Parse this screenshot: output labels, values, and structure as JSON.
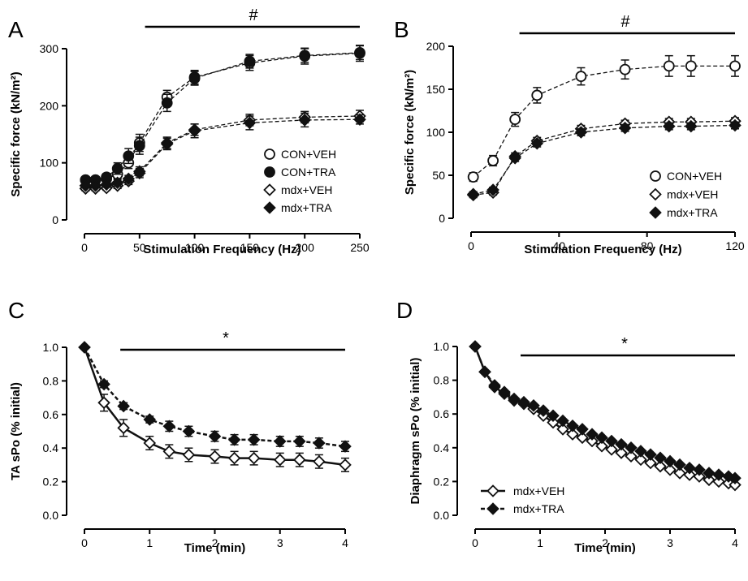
{
  "chart_data": [
    {
      "panel": "A",
      "type": "line",
      "significance_mark": "#",
      "significance_range": [
        55,
        250
      ],
      "xlabel": "Stimulation Frequency (Hz)",
      "ylabel": "Specific force (kN/m²)",
      "xlim": [
        0,
        250
      ],
      "ylim": [
        0,
        300
      ],
      "xticks": [
        0,
        50,
        100,
        150,
        200,
        250
      ],
      "yticks": [
        0,
        100,
        200,
        300
      ],
      "x": [
        1,
        10,
        20,
        30,
        40,
        50,
        75,
        100,
        150,
        200,
        250
      ],
      "legend_position": "lower-right",
      "series": [
        {
          "name": "CON+VEH",
          "marker": "circle-open",
          "values": [
            70,
            70,
            72,
            80,
            100,
            135,
            215,
            250,
            275,
            287,
            292
          ],
          "err": [
            5,
            5,
            6,
            8,
            10,
            15,
            12,
            12,
            13,
            14,
            14
          ]
        },
        {
          "name": "CON+TRA",
          "marker": "circle-filled",
          "values": [
            70,
            70,
            75,
            90,
            112,
            130,
            205,
            248,
            278,
            288,
            293
          ],
          "err": [
            5,
            5,
            6,
            10,
            13,
            15,
            15,
            12,
            12,
            12,
            12
          ]
        },
        {
          "name": "mdx+VEH",
          "marker": "diamond-open",
          "values": [
            55,
            55,
            56,
            60,
            68,
            85,
            135,
            158,
            175,
            180,
            182
          ],
          "err": [
            4,
            4,
            4,
            5,
            6,
            8,
            10,
            10,
            10,
            10,
            10
          ]
        },
        {
          "name": "mdx+TRA",
          "marker": "diamond-filled",
          "values": [
            60,
            60,
            62,
            65,
            72,
            82,
            133,
            156,
            170,
            175,
            176
          ],
          "err": [
            4,
            4,
            5,
            6,
            6,
            8,
            10,
            12,
            12,
            12,
            8
          ]
        }
      ]
    },
    {
      "panel": "B",
      "type": "line",
      "significance_mark": "#",
      "significance_range": [
        22,
        120
      ],
      "xlabel": "Stimulation Frequency (Hz)",
      "ylabel": "Specific force (kN/m²)",
      "xlim": [
        0,
        120
      ],
      "ylim": [
        0,
        200
      ],
      "xticks": [
        0,
        40,
        80,
        120
      ],
      "yticks": [
        0,
        50,
        100,
        150,
        200
      ],
      "x": [
        1,
        10,
        20,
        30,
        50,
        70,
        90,
        100,
        120
      ],
      "legend_position": "lower-right",
      "series": [
        {
          "name": "CON+VEH",
          "marker": "circle-open",
          "values": [
            48,
            67,
            115,
            143,
            165,
            173,
            177,
            177,
            177
          ],
          "err": [
            5,
            6,
            8,
            9,
            10,
            11,
            12,
            12,
            12
          ]
        },
        {
          "name": "mdx+VEH",
          "marker": "diamond-open",
          "values": [
            27,
            30,
            72,
            90,
            104,
            110,
            112,
            112,
            113
          ],
          "err": [
            3,
            3,
            4,
            4,
            4,
            4,
            4,
            4,
            4
          ]
        },
        {
          "name": "mdx+TRA",
          "marker": "diamond-filled",
          "values": [
            28,
            33,
            70,
            87,
            100,
            105,
            107,
            107,
            108
          ],
          "err": [
            3,
            3,
            4,
            4,
            4,
            4,
            4,
            4,
            4
          ]
        }
      ]
    },
    {
      "panel": "C",
      "type": "line",
      "significance_mark": "*",
      "significance_range": [
        0.55,
        4
      ],
      "xlabel": "Time (min)",
      "ylabel": "TA sPo (% initial)",
      "xlim": [
        0,
        4
      ],
      "ylim": [
        0,
        1.0
      ],
      "xticks": [
        0,
        1,
        2,
        3,
        4
      ],
      "yticks": [
        0.0,
        0.2,
        0.4,
        0.6,
        0.8,
        1.0
      ],
      "ytick_labels": [
        "0.0",
        "0.2",
        "0.4",
        "0.6",
        "0.8",
        "1.0"
      ],
      "x": [
        0,
        0.3,
        0.6,
        1.0,
        1.3,
        1.6,
        2.0,
        2.3,
        2.6,
        3.0,
        3.3,
        3.6,
        4.0
      ],
      "series": [
        {
          "marker": "diamond-open",
          "values": [
            1.0,
            0.67,
            0.52,
            0.43,
            0.38,
            0.36,
            0.35,
            0.34,
            0.34,
            0.33,
            0.33,
            0.32,
            0.3
          ],
          "err": [
            0,
            0.05,
            0.05,
            0.04,
            0.04,
            0.04,
            0.04,
            0.04,
            0.04,
            0.04,
            0.04,
            0.04,
            0.04
          ]
        },
        {
          "marker": "diamond-filled",
          "values": [
            1.0,
            0.78,
            0.65,
            0.57,
            0.53,
            0.5,
            0.47,
            0.45,
            0.45,
            0.44,
            0.44,
            0.43,
            0.41
          ],
          "err": [
            0,
            0.02,
            0.02,
            0.02,
            0.03,
            0.03,
            0.03,
            0.03,
            0.03,
            0.03,
            0.03,
            0.03,
            0.03
          ]
        }
      ]
    },
    {
      "panel": "D",
      "type": "line",
      "significance_mark": "*",
      "significance_range": [
        0.7,
        4
      ],
      "xlabel": "Time (min)",
      "ylabel": "Diaphragm sPo (% initial)",
      "xlim": [
        0,
        4
      ],
      "ylim": [
        0,
        1.0
      ],
      "xticks": [
        0,
        1,
        2,
        3,
        4
      ],
      "yticks": [
        0.0,
        0.2,
        0.4,
        0.6,
        0.8,
        1.0
      ],
      "ytick_labels": [
        "0.0",
        "0.2",
        "0.4",
        "0.6",
        "0.8",
        "1.0"
      ],
      "x": [
        0,
        0.15,
        0.3,
        0.45,
        0.6,
        0.75,
        0.9,
        1.05,
        1.2,
        1.35,
        1.5,
        1.65,
        1.8,
        1.95,
        2.1,
        2.25,
        2.4,
        2.55,
        2.7,
        2.85,
        3.0,
        3.15,
        3.3,
        3.45,
        3.6,
        3.75,
        3.9,
        4.0
      ],
      "legend_position": "lower-left",
      "series": [
        {
          "name": "mdx+VEH",
          "marker": "diamond-open",
          "line": "solid",
          "values": [
            1.0,
            0.85,
            0.76,
            0.72,
            0.68,
            0.66,
            0.63,
            0.59,
            0.55,
            0.51,
            0.48,
            0.46,
            0.44,
            0.41,
            0.39,
            0.37,
            0.35,
            0.33,
            0.31,
            0.29,
            0.27,
            0.25,
            0.24,
            0.23,
            0.21,
            0.2,
            0.19,
            0.18
          ]
        },
        {
          "name": "mdx+TRA",
          "marker": "diamond-filled",
          "line": "dashed",
          "values": [
            1.0,
            0.85,
            0.77,
            0.73,
            0.69,
            0.67,
            0.65,
            0.62,
            0.59,
            0.56,
            0.53,
            0.51,
            0.48,
            0.46,
            0.44,
            0.42,
            0.4,
            0.38,
            0.36,
            0.34,
            0.32,
            0.3,
            0.28,
            0.27,
            0.25,
            0.24,
            0.23,
            0.22
          ]
        }
      ]
    }
  ]
}
